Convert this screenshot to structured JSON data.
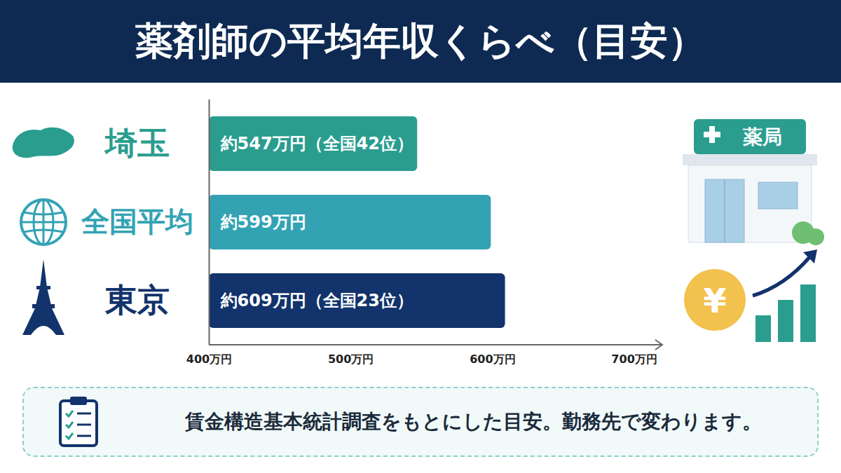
{
  "chart_data": {
    "type": "bar",
    "orientation": "horizontal",
    "title": "薬剤師の平均年収くらべ（目安）",
    "categories": [
      "埼玉",
      "全国平均",
      "東京"
    ],
    "values": [
      547,
      599,
      609
    ],
    "value_labels": [
      "約547万円（全国42位）",
      "約599万円",
      "約609万円（全国23位）"
    ],
    "data_labels": true,
    "colors": [
      "#2a9d8f",
      "#33a3b4",
      "#12336b"
    ],
    "xlim": [
      400,
      720
    ],
    "xticks": [
      {
        "value": 400,
        "label": "400万円"
      },
      {
        "value": 500,
        "label": "500万円"
      },
      {
        "value": 600,
        "label": "600万円"
      },
      {
        "value": 700,
        "label": "700万円"
      }
    ],
    "grid": false,
    "caption": "賃金構造基本統計調査をもとにした目安。勤務先で変わります。",
    "annotations": [
      "薬局",
      "¥"
    ]
  }
}
